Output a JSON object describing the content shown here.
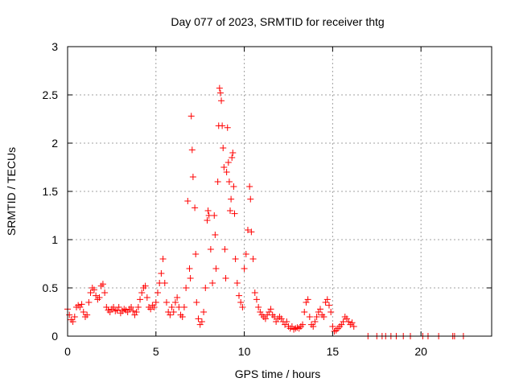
{
  "chart_data": {
    "type": "scatter",
    "title": "Day 077 of 2023, SRMTID for receiver thtg",
    "xlabel": "GPS time / hours",
    "ylabel": "SRMTID / TECUs",
    "xlim": [
      0,
      24
    ],
    "ylim": [
      0,
      3
    ],
    "xticks": [
      0,
      5,
      10,
      15,
      20
    ],
    "yticks": [
      0,
      0.5,
      1,
      1.5,
      2,
      2.5,
      3
    ],
    "xtick_labels": [
      "0",
      "5",
      "10",
      "15",
      "20"
    ],
    "ytick_labels": [
      "0",
      "0.5",
      "1",
      "1.5",
      "2",
      "2.5",
      "3"
    ],
    "grid": true,
    "marker": "+",
    "series": [
      {
        "name": "SRMTID",
        "color": "#ff0000",
        "points": [
          [
            0.0,
            0.28
          ],
          [
            0.1,
            0.22
          ],
          [
            0.2,
            0.17
          ],
          [
            0.3,
            0.15
          ],
          [
            0.4,
            0.2
          ],
          [
            0.5,
            0.3
          ],
          [
            0.6,
            0.32
          ],
          [
            0.7,
            0.3
          ],
          [
            0.8,
            0.33
          ],
          [
            0.9,
            0.25
          ],
          [
            1.0,
            0.2
          ],
          [
            1.1,
            0.22
          ],
          [
            1.2,
            0.35
          ],
          [
            1.3,
            0.45
          ],
          [
            1.4,
            0.5
          ],
          [
            1.5,
            0.48
          ],
          [
            1.6,
            0.42
          ],
          [
            1.7,
            0.38
          ],
          [
            1.8,
            0.4
          ],
          [
            1.9,
            0.52
          ],
          [
            2.0,
            0.54
          ],
          [
            2.1,
            0.45
          ],
          [
            2.2,
            0.3
          ],
          [
            2.3,
            0.27
          ],
          [
            2.4,
            0.25
          ],
          [
            2.5,
            0.28
          ],
          [
            2.6,
            0.3
          ],
          [
            2.7,
            0.26
          ],
          [
            2.8,
            0.27
          ],
          [
            2.9,
            0.3
          ],
          [
            3.0,
            0.24
          ],
          [
            3.1,
            0.26
          ],
          [
            3.2,
            0.28
          ],
          [
            3.3,
            0.27
          ],
          [
            3.4,
            0.25
          ],
          [
            3.5,
            0.28
          ],
          [
            3.6,
            0.3
          ],
          [
            3.7,
            0.26
          ],
          [
            3.8,
            0.22
          ],
          [
            3.9,
            0.25
          ],
          [
            4.0,
            0.3
          ],
          [
            4.1,
            0.38
          ],
          [
            4.2,
            0.45
          ],
          [
            4.3,
            0.5
          ],
          [
            4.4,
            0.52
          ],
          [
            4.5,
            0.4
          ],
          [
            4.6,
            0.3
          ],
          [
            4.7,
            0.28
          ],
          [
            4.8,
            0.32
          ],
          [
            4.9,
            0.3
          ],
          [
            5.0,
            0.35
          ],
          [
            5.1,
            0.45
          ],
          [
            5.2,
            0.55
          ],
          [
            5.3,
            0.65
          ],
          [
            5.4,
            0.8
          ],
          [
            5.5,
            0.55
          ],
          [
            5.6,
            0.35
          ],
          [
            5.7,
            0.25
          ],
          [
            5.8,
            0.22
          ],
          [
            5.9,
            0.3
          ],
          [
            6.0,
            0.25
          ],
          [
            6.1,
            0.35
          ],
          [
            6.2,
            0.4
          ],
          [
            6.3,
            0.3
          ],
          [
            6.4,
            0.22
          ],
          [
            6.5,
            0.2
          ],
          [
            6.6,
            0.3
          ],
          [
            6.7,
            0.5
          ],
          [
            6.8,
            1.4
          ],
          [
            6.9,
            0.7
          ],
          [
            6.95,
            0.6
          ],
          [
            7.0,
            2.28
          ],
          [
            7.05,
            1.93
          ],
          [
            7.1,
            1.65
          ],
          [
            7.2,
            1.33
          ],
          [
            7.25,
            0.85
          ],
          [
            7.3,
            0.35
          ],
          [
            7.4,
            0.18
          ],
          [
            7.5,
            0.12
          ],
          [
            7.6,
            0.15
          ],
          [
            7.7,
            0.25
          ],
          [
            7.8,
            0.5
          ],
          [
            7.9,
            1.2
          ],
          [
            7.95,
            1.3
          ],
          [
            8.0,
            1.25
          ],
          [
            8.1,
            0.9
          ],
          [
            8.2,
            0.55
          ],
          [
            8.3,
            1.25
          ],
          [
            8.35,
            1.05
          ],
          [
            8.4,
            0.7
          ],
          [
            8.5,
            1.6
          ],
          [
            8.55,
            2.18
          ],
          [
            8.6,
            2.57
          ],
          [
            8.65,
            2.52
          ],
          [
            8.7,
            2.44
          ],
          [
            8.75,
            2.18
          ],
          [
            8.8,
            1.95
          ],
          [
            8.85,
            1.75
          ],
          [
            8.9,
            0.9
          ],
          [
            8.95,
            0.6
          ],
          [
            9.0,
            1.7
          ],
          [
            9.05,
            2.16
          ],
          [
            9.1,
            1.8
          ],
          [
            9.15,
            1.6
          ],
          [
            9.2,
            1.3
          ],
          [
            9.25,
            1.42
          ],
          [
            9.3,
            1.85
          ],
          [
            9.35,
            1.9
          ],
          [
            9.4,
            1.55
          ],
          [
            9.45,
            1.27
          ],
          [
            9.5,
            0.8
          ],
          [
            9.6,
            0.55
          ],
          [
            9.7,
            0.42
          ],
          [
            9.8,
            0.35
          ],
          [
            9.9,
            0.3
          ],
          [
            10.0,
            0.7
          ],
          [
            10.1,
            0.85
          ],
          [
            10.2,
            1.1
          ],
          [
            10.3,
            1.55
          ],
          [
            10.35,
            1.42
          ],
          [
            10.4,
            1.08
          ],
          [
            10.5,
            0.8
          ],
          [
            10.6,
            0.45
          ],
          [
            10.7,
            0.38
          ],
          [
            10.8,
            0.3
          ],
          [
            10.9,
            0.25
          ],
          [
            11.0,
            0.22
          ],
          [
            11.1,
            0.2
          ],
          [
            11.2,
            0.18
          ],
          [
            11.3,
            0.22
          ],
          [
            11.4,
            0.25
          ],
          [
            11.5,
            0.28
          ],
          [
            11.6,
            0.22
          ],
          [
            11.7,
            0.2
          ],
          [
            11.8,
            0.15
          ],
          [
            11.9,
            0.18
          ],
          [
            12.0,
            0.2
          ],
          [
            12.1,
            0.18
          ],
          [
            12.2,
            0.15
          ],
          [
            12.3,
            0.12
          ],
          [
            12.4,
            0.15
          ],
          [
            12.5,
            0.1
          ],
          [
            12.6,
            0.08
          ],
          [
            12.7,
            0.1
          ],
          [
            12.8,
            0.07
          ],
          [
            12.9,
            0.08
          ],
          [
            13.0,
            0.09
          ],
          [
            13.1,
            0.08
          ],
          [
            13.2,
            0.1
          ],
          [
            13.3,
            0.12
          ],
          [
            13.4,
            0.25
          ],
          [
            13.5,
            0.35
          ],
          [
            13.6,
            0.38
          ],
          [
            13.7,
            0.2
          ],
          [
            13.8,
            0.12
          ],
          [
            13.9,
            0.1
          ],
          [
            14.0,
            0.15
          ],
          [
            14.1,
            0.2
          ],
          [
            14.2,
            0.25
          ],
          [
            14.3,
            0.28
          ],
          [
            14.4,
            0.22
          ],
          [
            14.5,
            0.2
          ],
          [
            14.6,
            0.35
          ],
          [
            14.7,
            0.38
          ],
          [
            14.8,
            0.32
          ],
          [
            14.9,
            0.25
          ],
          [
            15.0,
            0.1
          ],
          [
            15.1,
            0.05
          ],
          [
            15.2,
            0.06
          ],
          [
            15.3,
            0.08
          ],
          [
            15.4,
            0.1
          ],
          [
            15.5,
            0.12
          ],
          [
            15.6,
            0.15
          ],
          [
            15.7,
            0.2
          ],
          [
            15.8,
            0.18
          ],
          [
            15.9,
            0.15
          ],
          [
            16.0,
            0.12
          ],
          [
            16.1,
            0.14
          ],
          [
            16.2,
            0.1
          ],
          [
            17.0,
            0.0
          ],
          [
            17.5,
            0.0
          ],
          [
            17.8,
            0.0
          ],
          [
            18.0,
            0.0
          ],
          [
            18.3,
            0.0
          ],
          [
            18.6,
            0.0
          ],
          [
            19.0,
            0.0
          ],
          [
            19.4,
            0.0
          ],
          [
            20.1,
            0.0
          ],
          [
            20.4,
            0.0
          ],
          [
            21.0,
            0.0
          ],
          [
            21.8,
            0.0
          ],
          [
            21.9,
            0.0
          ],
          [
            22.4,
            0.0
          ]
        ]
      }
    ]
  }
}
